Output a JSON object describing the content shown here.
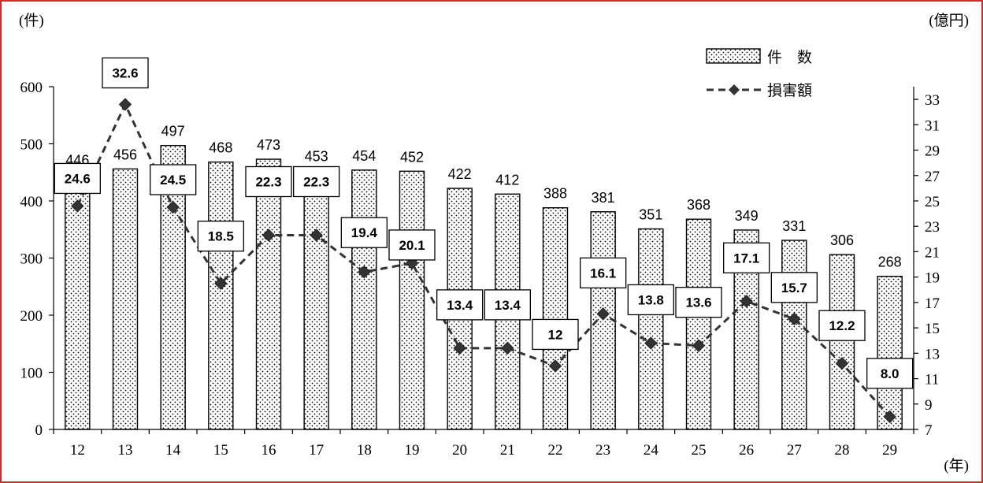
{
  "chart_data": {
    "type": "bar",
    "y_left_unit": "(件)",
    "y_right_unit": "(億円)",
    "x_unit": "(年)",
    "categories": [
      "12",
      "13",
      "14",
      "15",
      "16",
      "17",
      "18",
      "19",
      "20",
      "21",
      "22",
      "23",
      "24",
      "25",
      "26",
      "27",
      "28",
      "29"
    ],
    "series": [
      {
        "name": "件　数",
        "type": "bar",
        "axis": "left",
        "values": [
          446,
          456,
          497,
          468,
          473,
          453,
          454,
          452,
          422,
          412,
          388,
          381,
          351,
          368,
          349,
          331,
          306,
          268
        ],
        "labels": [
          "446",
          "456",
          "497",
          "468",
          "473",
          "453",
          "454",
          "452",
          "422",
          "412",
          "388",
          "381",
          "351",
          "368",
          "349",
          "331",
          "306",
          "268"
        ]
      },
      {
        "name": "損害額",
        "type": "line",
        "axis": "right",
        "values": [
          24.6,
          32.6,
          24.5,
          18.5,
          22.3,
          22.3,
          19.4,
          20.1,
          13.4,
          13.4,
          12,
          16.1,
          13.8,
          13.6,
          17.1,
          15.7,
          12.2,
          8.0
        ],
        "labels": [
          "24.6",
          "32.6",
          "24.5",
          "18.5",
          "22.3",
          "22.3",
          "19.4",
          "20.1",
          "13.4",
          "13.4",
          "12",
          "16.1",
          "13.8",
          "13.6",
          "17.1",
          "15.7",
          "12.2",
          "8.0"
        ]
      }
    ],
    "y_left": {
      "min": 0,
      "max": 600,
      "ticks": [
        "0",
        "100",
        "200",
        "300",
        "400",
        "500",
        "600"
      ]
    },
    "y_right": {
      "min": 7,
      "max": 34,
      "ticks": [
        "7",
        "9",
        "11",
        "13",
        "15",
        "17",
        "19",
        "21",
        "23",
        "25",
        "27",
        "29",
        "31",
        "33"
      ]
    },
    "grid": false,
    "legend_position": "top-right"
  }
}
